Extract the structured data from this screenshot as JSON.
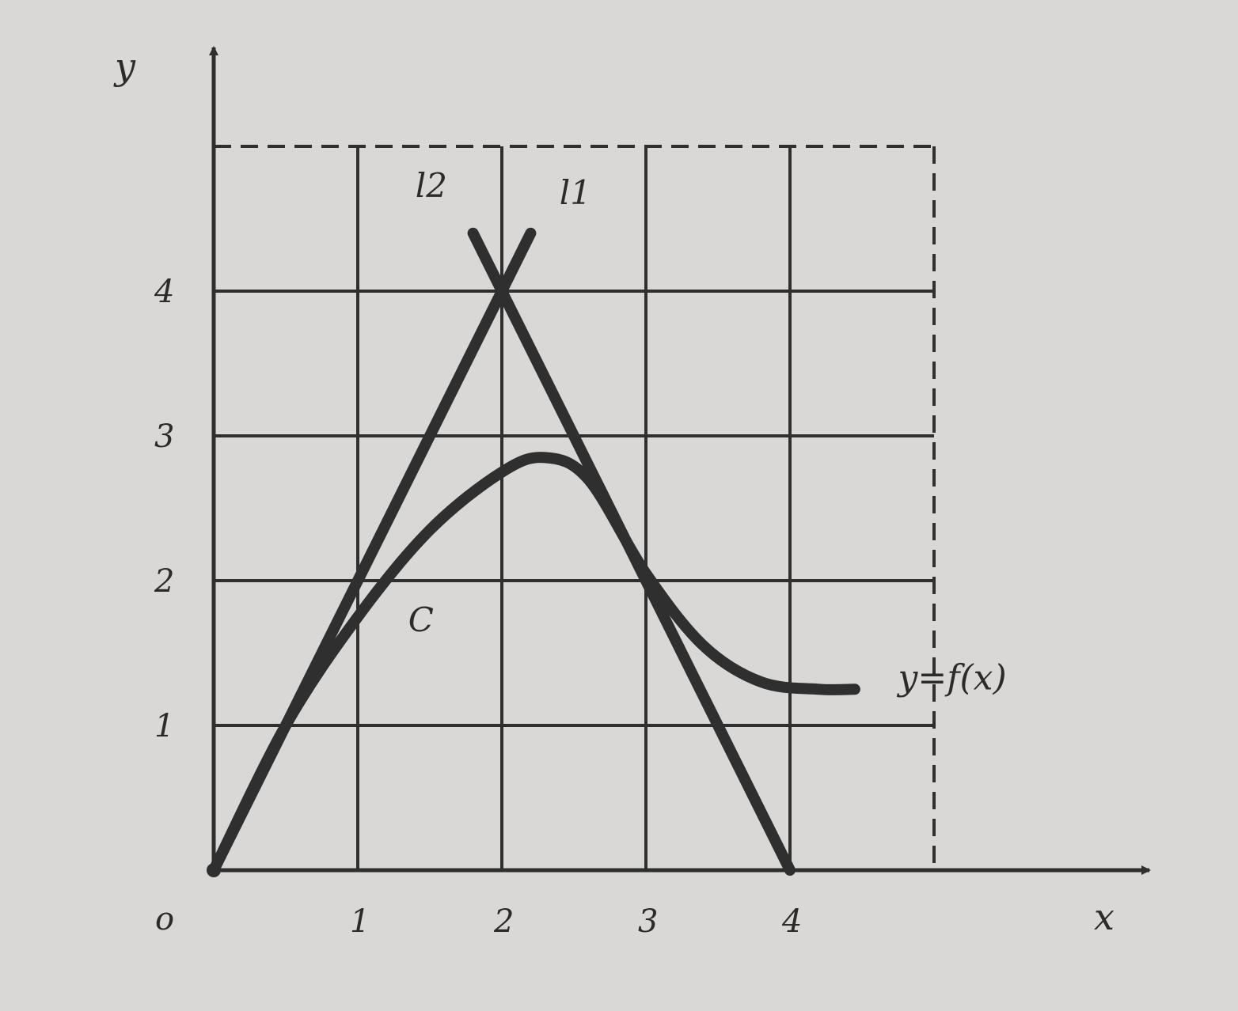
{
  "chart_data": {
    "type": "line",
    "axes": {
      "x_label": "x",
      "y_label": "y",
      "origin_label": "o",
      "xlim": [
        0,
        5
      ],
      "ylim": [
        0,
        5
      ]
    },
    "x_ticks": [
      "1",
      "2",
      "3",
      "4"
    ],
    "y_ticks": [
      "1",
      "2",
      "3",
      "4"
    ],
    "grid": true,
    "grid_border_style": "dashed",
    "series": [
      {
        "name": "l2",
        "x": [
          0,
          2.2
        ],
        "y": [
          0,
          4.4
        ]
      },
      {
        "name": "l1",
        "x": [
          1.8,
          4
        ],
        "y": [
          4.4,
          0
        ]
      },
      {
        "name": "y=f(x)",
        "x": [
          0,
          0.5,
          1,
          1.5,
          2,
          2.3,
          2.6,
          3,
          3.4,
          3.8,
          4.2,
          4.45
        ],
        "y": [
          0,
          1.0,
          1.75,
          2.35,
          2.75,
          2.85,
          2.7,
          2.05,
          1.55,
          1.3,
          1.25,
          1.25
        ]
      }
    ],
    "annotations": [
      {
        "text": "l2",
        "x": 1.4,
        "y": 4.65
      },
      {
        "text": "l1",
        "x": 2.4,
        "y": 4.6
      },
      {
        "text": "C",
        "x": 1.35,
        "y": 1.65
      },
      {
        "text": "y=f(x)",
        "x": 4.75,
        "y": 1.25
      }
    ],
    "colors": {
      "ink": "#2f2f2f",
      "paper": "#d9d8d6"
    }
  }
}
